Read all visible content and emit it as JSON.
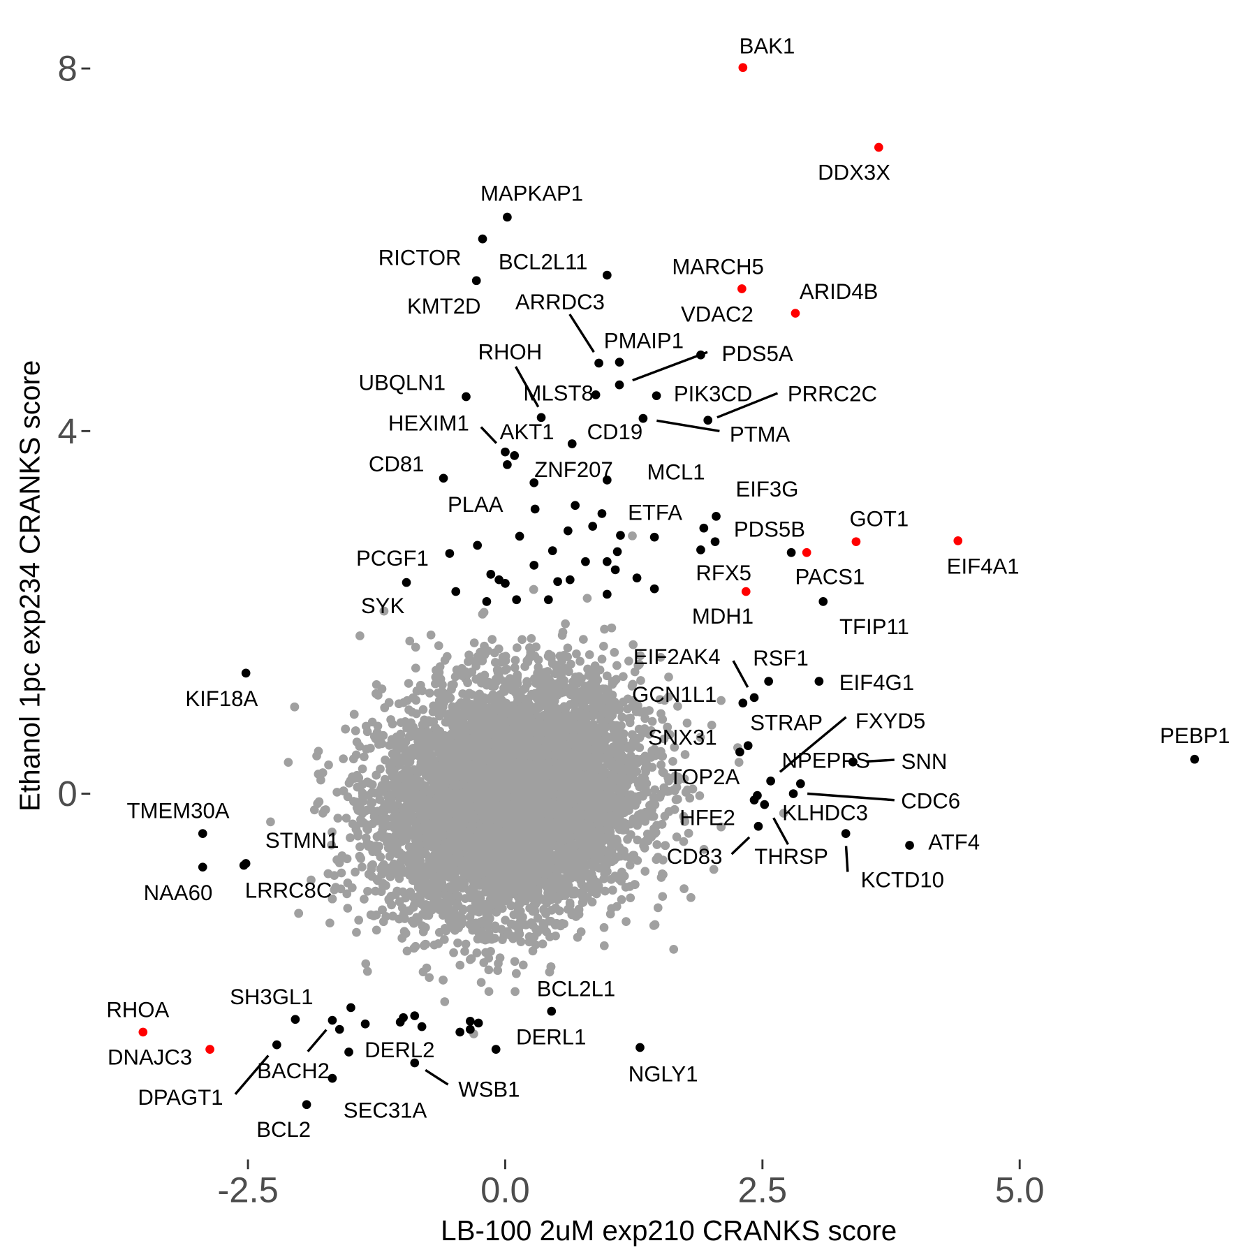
{
  "chart_data": {
    "type": "scatter",
    "xlabel": "LB-100 2uM exp210 CRANKS score",
    "ylabel": "Ethanol 1pc exp234 CRANKS score",
    "xlim": [
      -4.9,
      7.3
    ],
    "ylim": [
      -4.2,
      8.7
    ],
    "x_ticks": [
      {
        "value": -2.5,
        "label": "-2.5"
      },
      {
        "value": 0,
        "label": "0.0"
      },
      {
        "value": 2.5,
        "label": "2.5"
      },
      {
        "value": 5,
        "label": "5.0"
      }
    ],
    "y_ticks": [
      {
        "value": 0,
        "label": "0"
      },
      {
        "value": 4,
        "label": "4"
      },
      {
        "value": 8,
        "label": "8"
      }
    ],
    "grid": false,
    "colors": {
      "background": "#a0a0a0",
      "hit": "#000000",
      "highlight": "#ff0000"
    },
    "background_points": {
      "count": 8000,
      "mean_x": 0.05,
      "mean_y": -0.05,
      "sd_x": 0.62,
      "sd_y": 0.64,
      "correlation": 0.15
    },
    "labeled_points": [
      {
        "name": "BAK1",
        "x": 2.31,
        "y": 8.01,
        "group": "highlight"
      },
      {
        "name": "DDX3X",
        "x": 3.63,
        "y": 7.13,
        "group": "highlight"
      },
      {
        "name": "MAPKAP1",
        "x": 0.02,
        "y": 6.36,
        "group": "hit"
      },
      {
        "name": "RICTOR",
        "x": -0.22,
        "y": 6.12,
        "group": "hit"
      },
      {
        "name": "BCL2L11",
        "x": 0.99,
        "y": 5.72,
        "group": "hit"
      },
      {
        "name": "KMT2D",
        "x": -0.28,
        "y": 5.66,
        "group": "hit"
      },
      {
        "name": "MARCH5",
        "x": 2.3,
        "y": 5.57,
        "group": "highlight"
      },
      {
        "name": "ARID4B",
        "x": 2.82,
        "y": 5.3,
        "group": "highlight"
      },
      {
        "name": "ARRDC3",
        "x": 0.91,
        "y": 4.75,
        "group": "hit"
      },
      {
        "name": "PMAIP1",
        "x": 1.11,
        "y": 4.76,
        "group": "hit"
      },
      {
        "name": "VDAC2",
        "x": 1.9,
        "y": 4.84,
        "group": "hit"
      },
      {
        "name": "PDS5A",
        "x": 1.11,
        "y": 4.51,
        "group": "hit"
      },
      {
        "name": "RHOH",
        "x": 0.35,
        "y": 4.15,
        "group": "hit"
      },
      {
        "name": "MLST8",
        "x": 0.88,
        "y": 4.4,
        "group": "hit"
      },
      {
        "name": "UBQLN1",
        "x": -0.38,
        "y": 4.38,
        "group": "hit"
      },
      {
        "name": "PIK3CD",
        "x": 1.47,
        "y": 4.39,
        "group": "hit"
      },
      {
        "name": "PRRC2C",
        "x": 1.97,
        "y": 4.12,
        "group": "hit"
      },
      {
        "name": "PTMA",
        "x": 1.34,
        "y": 4.14,
        "group": "hit"
      },
      {
        "name": "CD19",
        "x": 0.65,
        "y": 3.86,
        "group": "hit"
      },
      {
        "name": "HEXIM1",
        "x": 0.0,
        "y": 3.77,
        "group": "hit"
      },
      {
        "name": "AKT1",
        "x": 0.09,
        "y": 3.73,
        "group": "hit"
      },
      {
        "name": "ZNF207",
        "x": 0.02,
        "y": 3.63,
        "group": "hit"
      },
      {
        "name": "CD81",
        "x": -0.6,
        "y": 3.48,
        "group": "hit"
      },
      {
        "name": "MCL1",
        "x": 0.99,
        "y": 3.46,
        "group": "hit"
      },
      {
        "name": "PLAA",
        "x": 0.28,
        "y": 3.43,
        "group": "hit"
      },
      {
        "name": "EIF3G",
        "x": 2.05,
        "y": 3.06,
        "group": "hit"
      },
      {
        "name": "ETFA",
        "x": 1.45,
        "y": 2.83,
        "group": "hit"
      },
      {
        "name": "PDS5B",
        "x": 2.04,
        "y": 2.78,
        "group": "hit"
      },
      {
        "name": "GOT1",
        "x": 3.41,
        "y": 2.78,
        "group": "highlight"
      },
      {
        "name": "EIF4A1",
        "x": 4.4,
        "y": 2.79,
        "group": "highlight"
      },
      {
        "name": "PACS1",
        "x": 2.93,
        "y": 2.66,
        "group": "highlight"
      },
      {
        "name": "MDH1",
        "x": 1.9,
        "y": 2.69,
        "group": "hit"
      },
      {
        "name": "PCGF1",
        "x": -0.54,
        "y": 2.65,
        "group": "hit"
      },
      {
        "name": "RFX5",
        "x": 2.34,
        "y": 2.23,
        "group": "highlight"
      },
      {
        "name": "SYK",
        "x": -0.96,
        "y": 2.33,
        "group": "hit"
      },
      {
        "name": "TFIP11",
        "x": 3.09,
        "y": 2.12,
        "group": "hit"
      },
      {
        "name": "KIF18A",
        "x": -2.52,
        "y": 1.33,
        "group": "hit"
      },
      {
        "name": "RSF1",
        "x": 2.56,
        "y": 1.24,
        "group": "hit"
      },
      {
        "name": "EIF4G1",
        "x": 3.05,
        "y": 1.24,
        "group": "hit"
      },
      {
        "name": "EIF2AK4",
        "x": 2.42,
        "y": 1.06,
        "group": "hit"
      },
      {
        "name": "GCN1L1",
        "x": 2.31,
        "y": 1.0,
        "group": "hit"
      },
      {
        "name": "STRAP",
        "x": 2.36,
        "y": 0.53,
        "group": "hit"
      },
      {
        "name": "SNX31",
        "x": 2.28,
        "y": 0.46,
        "group": "hit"
      },
      {
        "name": "FXYD5",
        "x": 2.58,
        "y": 0.14,
        "group": "hit"
      },
      {
        "name": "NPEPPS",
        "x": 3.38,
        "y": 0.35,
        "group": "hit"
      },
      {
        "name": "SNN",
        "x": 3.38,
        "y": 0.35,
        "group": "hit"
      },
      {
        "name": "PEBP1",
        "x": 6.7,
        "y": 0.38,
        "group": "hit"
      },
      {
        "name": "TOP2A",
        "x": 2.45,
        "y": -0.02,
        "group": "hit"
      },
      {
        "name": "CDC6",
        "x": 2.87,
        "y": 0.11,
        "group": "hit"
      },
      {
        "name": "KLHDC3",
        "x": 2.8,
        "y": 0.0,
        "group": "hit"
      },
      {
        "name": "HFE2",
        "x": 2.42,
        "y": -0.07,
        "group": "hit"
      },
      {
        "name": "THRSP",
        "x": 2.52,
        "y": -0.12,
        "group": "hit"
      },
      {
        "name": "CD83",
        "x": 2.46,
        "y": -0.36,
        "group": "hit"
      },
      {
        "name": "KCTD10",
        "x": 3.31,
        "y": -0.44,
        "group": "hit"
      },
      {
        "name": "ATF4",
        "x": 3.93,
        "y": -0.57,
        "group": "hit"
      },
      {
        "name": "TMEM30A",
        "x": -2.94,
        "y": -0.44,
        "group": "hit"
      },
      {
        "name": "NAA60",
        "x": -2.94,
        "y": -0.81,
        "group": "hit"
      },
      {
        "name": "STMN1",
        "x": -2.52,
        "y": -0.77,
        "group": "hit"
      },
      {
        "name": "LRRC8C",
        "x": -2.54,
        "y": -0.79,
        "group": "hit"
      },
      {
        "name": "BCL2L1",
        "x": 0.45,
        "y": -2.4,
        "group": "hit"
      },
      {
        "name": "RHOA",
        "x": -3.52,
        "y": -2.63,
        "group": "highlight"
      },
      {
        "name": "DNAJC3",
        "x": -2.87,
        "y": -2.82,
        "group": "highlight"
      },
      {
        "name": "SH3GL1",
        "x": -2.04,
        "y": -2.49,
        "group": "hit"
      },
      {
        "name": "NGLY1",
        "x": 1.31,
        "y": -2.8,
        "group": "hit"
      },
      {
        "name": "DERL1",
        "x": -0.09,
        "y": -2.82,
        "group": "hit"
      },
      {
        "name": "BACH2",
        "x": -1.68,
        "y": -2.5,
        "group": "hit"
      },
      {
        "name": "DPAGT1",
        "x": -2.22,
        "y": -2.77,
        "group": "hit"
      },
      {
        "name": "DERL2",
        "x": -1.52,
        "y": -2.85,
        "group": "hit"
      },
      {
        "name": "WSB1",
        "x": -0.88,
        "y": -2.97,
        "group": "hit"
      },
      {
        "name": "SEC31A",
        "x": -1.68,
        "y": -3.14,
        "group": "hit"
      },
      {
        "name": "BCL2",
        "x": -1.93,
        "y": -3.43,
        "group": "hit"
      }
    ],
    "unlabeled_hits": [
      [
        -0.14,
        2.42
      ],
      [
        -0.06,
        2.36
      ],
      [
        -0.18,
        2.12
      ],
      [
        -0.48,
        2.23
      ],
      [
        -0.27,
        2.74
      ],
      [
        0.14,
        2.84
      ],
      [
        0.28,
        2.52
      ],
      [
        0.46,
        2.68
      ],
      [
        0.51,
        2.34
      ],
      [
        0.61,
        2.9
      ],
      [
        0.68,
        3.18
      ],
      [
        0.85,
        2.95
      ],
      [
        0.94,
        3.09
      ],
      [
        1.12,
        2.85
      ],
      [
        1.09,
        2.67
      ],
      [
        1.07,
        2.47
      ],
      [
        0.99,
        2.2
      ],
      [
        1.28,
        2.38
      ],
      [
        1.45,
        2.26
      ],
      [
        0.63,
        2.36
      ],
      [
        0.78,
        2.56
      ],
      [
        0.42,
        2.14
      ],
      [
        0.29,
        3.14
      ],
      [
        0.0,
        2.32
      ],
      [
        0.11,
        2.14
      ],
      [
        0.99,
        2.56
      ],
      [
        1.93,
        2.93
      ],
      [
        2.78,
        2.66
      ],
      [
        -1.5,
        -2.36
      ],
      [
        -1.61,
        -2.6
      ],
      [
        -1.36,
        -2.54
      ],
      [
        -1.02,
        -2.52
      ],
      [
        -0.88,
        -2.45
      ],
      [
        -0.81,
        -2.57
      ],
      [
        -0.44,
        -2.63
      ],
      [
        -0.34,
        -2.51
      ],
      [
        -0.26,
        -2.53
      ],
      [
        -0.34,
        -2.6
      ],
      [
        -0.99,
        -2.47
      ]
    ]
  }
}
